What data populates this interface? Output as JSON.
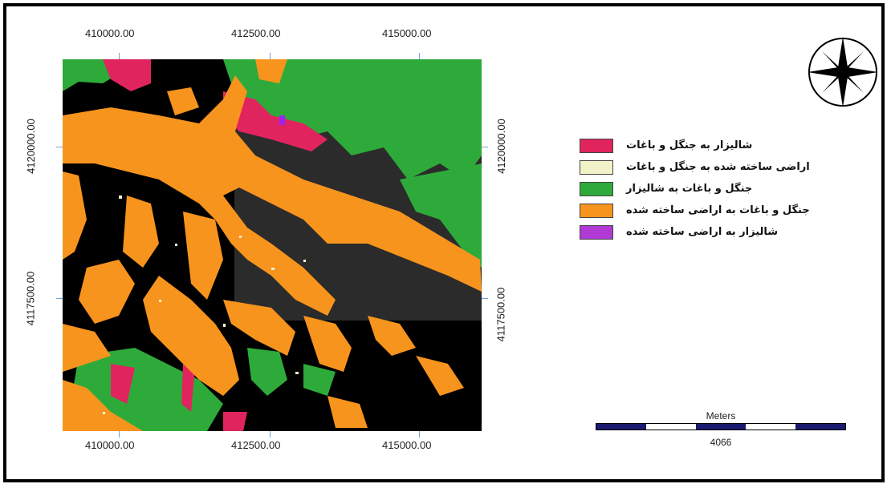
{
  "map": {
    "x_ticks_top": [
      "410000.00",
      "412500.00",
      "415000.00"
    ],
    "x_ticks_bottom": [
      "410000.00",
      "412500.00",
      "415000.00"
    ],
    "y_ticks_left": [
      "4120000.00",
      "4117500.00"
    ],
    "y_ticks_right": [
      "4120000.00",
      "4117500.00"
    ],
    "colors": {
      "background": "#000000",
      "paddy_to_forest": "#e0245e",
      "built_to_forest": "#f2f2c8",
      "forest_to_paddy": "#2eaa3a",
      "forest_to_built": "#f7941d",
      "paddy_to_built": "#a020f0"
    }
  },
  "legend": {
    "items": [
      {
        "label": "شالیزار به جنگل و باغات",
        "color": "#e0245e"
      },
      {
        "label": "اراضی ساخته شده به جنگل و باغات",
        "color": "#f2f2c8"
      },
      {
        "label": "جنگل و باغات به شالیزار",
        "color": "#2eaa3a"
      },
      {
        "label": "جنگل و باغات به اراضی ساخته شده",
        "color": "#f7941d"
      },
      {
        "label": "شالیزار به اراضی ساخته شده",
        "color": "#b13ad6"
      }
    ]
  },
  "scalebar": {
    "title": "Meters",
    "value": "4066"
  },
  "north_arrow": {
    "icon": "compass-rose-icon"
  }
}
